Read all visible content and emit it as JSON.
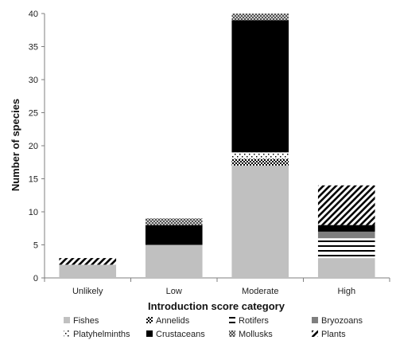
{
  "chart_data": {
    "type": "bar",
    "stacked": true,
    "title": "",
    "xlabel": "Introduction score category",
    "ylabel": "Number of species",
    "ylim": [
      0,
      40
    ],
    "yticks": [
      0,
      5,
      10,
      15,
      20,
      25,
      30,
      35,
      40
    ],
    "grid": false,
    "legend_position": "bottom",
    "categories": [
      "Unlikely",
      "Low",
      "Moderate",
      "High"
    ],
    "series": [
      {
        "name": "Fishes",
        "values": [
          2,
          5,
          17,
          3
        ],
        "pattern": "solid-lightgray",
        "color": "#c0c0c0"
      },
      {
        "name": "Annelids",
        "values": [
          0,
          0,
          1,
          0
        ],
        "pattern": "checker",
        "color": "#000000"
      },
      {
        "name": "Rotifers",
        "values": [
          0,
          0,
          0,
          3
        ],
        "pattern": "horizontal-stripes",
        "color": "#000000"
      },
      {
        "name": "Bryozoans",
        "values": [
          0,
          0,
          0,
          1
        ],
        "pattern": "solid-gray",
        "color": "#7f7f7f"
      },
      {
        "name": "Platyhelminths",
        "values": [
          0,
          0,
          1,
          0
        ],
        "pattern": "dots",
        "color": "#000000"
      },
      {
        "name": "Crustaceans",
        "values": [
          0,
          3,
          20,
          1
        ],
        "pattern": "solid-black",
        "color": "#000000"
      },
      {
        "name": "Mollusks",
        "values": [
          0,
          1,
          1,
          0
        ],
        "pattern": "crosshatch",
        "color": "#000000"
      },
      {
        "name": "Plants",
        "values": [
          1,
          0,
          0,
          6
        ],
        "pattern": "diagonal-stripes",
        "color": "#000000"
      }
    ]
  }
}
